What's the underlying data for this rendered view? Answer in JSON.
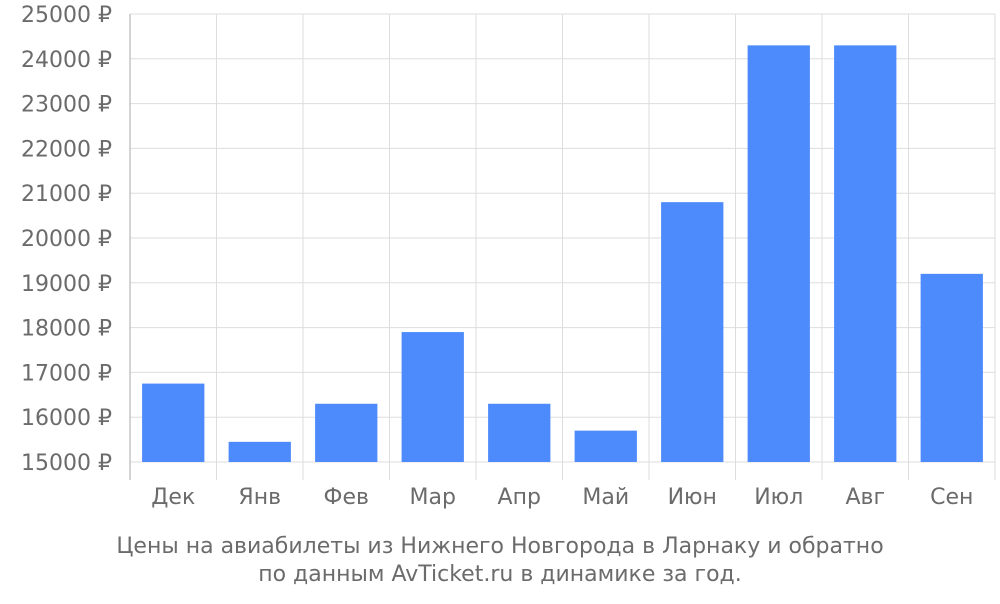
{
  "chart_data": {
    "type": "bar",
    "categories": [
      "Дек",
      "Янв",
      "Фев",
      "Мар",
      "Апр",
      "Май",
      "Июн",
      "Июл",
      "Авг",
      "Сен"
    ],
    "values": [
      16750,
      15450,
      16300,
      17900,
      16300,
      15700,
      20800,
      24300,
      24300,
      19200
    ],
    "ylim": [
      15000,
      25000
    ],
    "yticks": [
      15000,
      16000,
      17000,
      18000,
      19000,
      20000,
      21000,
      22000,
      23000,
      24000,
      25000
    ],
    "ytick_labels": [
      "15000 ₽",
      "16000 ₽",
      "17000 ₽",
      "18000 ₽",
      "19000 ₽",
      "20000 ₽",
      "21000 ₽",
      "22000 ₽",
      "23000 ₽",
      "24000 ₽",
      "25000 ₽"
    ],
    "grid": true,
    "legend": "none",
    "colors": {
      "bar": "#4d8afc",
      "grid": "#dddddd",
      "axis": "#aaaaaa",
      "text": "#6b6b6b"
    }
  },
  "caption": {
    "line1": "Цены на авиабилеты из Нижнего Новгорода в Ларнаку и обратно",
    "line2": "по данным AvTicket.ru в динамике за год."
  }
}
